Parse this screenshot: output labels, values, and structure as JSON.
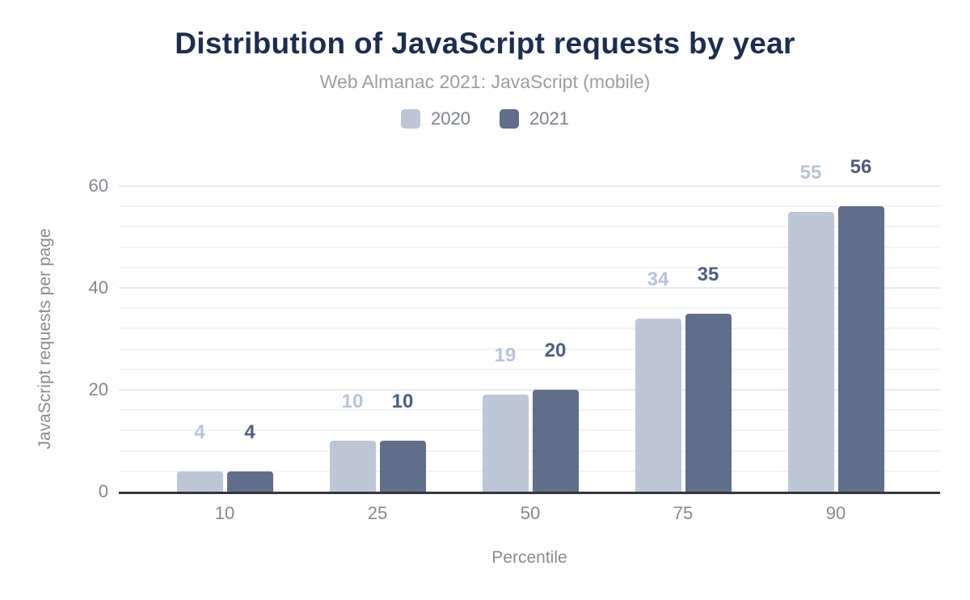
{
  "chart_data": {
    "type": "bar",
    "title": "Distribution of JavaScript requests by year",
    "subtitle": "Web Almanac 2021: JavaScript (mobile)",
    "xlabel": "Percentile",
    "ylabel": "JavaScript requests per page",
    "categories": [
      "10",
      "25",
      "50",
      "75",
      "90"
    ],
    "series": [
      {
        "name": "2020",
        "color": "#bcc6d7",
        "label_color": "#b7c3d8",
        "values": [
          4,
          10,
          19,
          34,
          55
        ]
      },
      {
        "name": "2021",
        "color": "#5f6e8a",
        "label_color": "#4d5f7e",
        "values": [
          4,
          10,
          20,
          35,
          56
        ]
      }
    ],
    "ylim": [
      0,
      60
    ],
    "yticks": [
      0,
      20,
      40,
      60
    ],
    "minor_grid_step": 4,
    "grid": true,
    "legend_position": "top"
  },
  "colors": {
    "title": "#1d2d50",
    "subtitle": "#9b9ea4",
    "axis_text": "#82868e",
    "axis_line": "#33363c",
    "gridline_minor": "#f3f4f6",
    "gridline_major": "#e7e9ed",
    "background": "#ffffff"
  }
}
